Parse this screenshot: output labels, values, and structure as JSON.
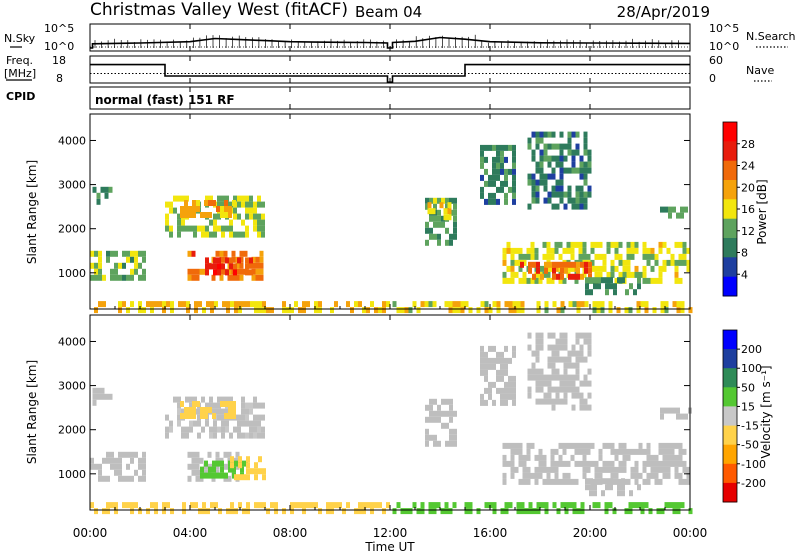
{
  "header": {
    "station": "Christmas Valley West (fitACF)",
    "beam": "Beam 04",
    "date": "28/Apr/2019"
  },
  "left_labels": {
    "nsky": "N.Sky",
    "freq_line1": "Freq.",
    "freq_line2": "[MHz]",
    "cpid": "CPID"
  },
  "right_labels": {
    "nsearch": "N.Search",
    "nave": "Nave"
  },
  "cpid_text": "normal (fast) 151 RF",
  "colors": {
    "power": [
      "#0000ff",
      "#1e3fa0",
      "#2e7b5c",
      "#5ea35e",
      "#f2e60e",
      "#f5a20b",
      "#f06a0a",
      "#e81c0c",
      "#ff0000"
    ],
    "velocity": [
      "#e60000",
      "#ff5a00",
      "#ffa500",
      "#ffd24a",
      "#c8c8c8",
      "#54c832",
      "#2e8b57",
      "#1e3f9f",
      "#0000ff"
    ],
    "ground": "#bebebe"
  },
  "chart_data": [
    {
      "type": "line",
      "id": "noise",
      "x": [
        0,
        24
      ],
      "xlim": [
        0,
        24
      ],
      "left_axis": {
        "ticks": [
          "10^5",
          "10^0"
        ]
      },
      "right_axis": {
        "ticks": [
          "10^5",
          "10^0"
        ]
      },
      "series": [
        {
          "x": [
            0.0,
            0.1,
            0.1,
            2.0,
            4.0,
            5.0,
            6.0,
            7.0,
            8.0,
            9.0,
            10.0,
            11.0,
            11.9,
            11.9,
            12.1,
            12.1,
            13.0,
            14.0,
            15.0,
            16.0,
            18.0,
            20.0,
            22.0,
            24.0
          ],
          "y": [
            0.0,
            0.0,
            0.2,
            0.24,
            0.3,
            0.45,
            0.4,
            0.35,
            0.3,
            0.28,
            0.27,
            0.26,
            0.24,
            0.0,
            0.0,
            0.26,
            0.32,
            0.5,
            0.42,
            0.3,
            0.25,
            0.24,
            0.23,
            0.22
          ]
        }
      ]
    },
    {
      "type": "line",
      "id": "frequency",
      "xlim": [
        0,
        24
      ],
      "left_axis": {
        "ticks": [
          "18",
          "8"
        ],
        "range": [
          8,
          18
        ]
      },
      "right_axis": {
        "ticks": [
          "60",
          "0"
        ],
        "range": [
          0,
          60
        ]
      },
      "series": [
        {
          "x": [
            0,
            3.0,
            3.0,
            11.9,
            11.9,
            12.1,
            12.1,
            15.0,
            15.0,
            24
          ],
          "y": [
            14.8,
            14.8,
            10.6,
            10.6,
            8.3,
            8.3,
            10.6,
            10.6,
            14.8,
            14.8
          ]
        },
        {
          "x": [
            0,
            24
          ],
          "y": [
            11.5,
            11.5
          ]
        }
      ]
    },
    {
      "type": "heatmap",
      "id": "power",
      "ylabel": "Slant Range [km]",
      "xlim": [
        0,
        24
      ],
      "ylim": [
        180,
        4600
      ],
      "yticks": [
        1000,
        2000,
        3000,
        4000
      ],
      "colorbar": {
        "label": "Power [dB]",
        "ticks": [
          4,
          8,
          12,
          16,
          20,
          24,
          28
        ],
        "range": [
          0,
          32
        ]
      },
      "patches": [
        {
          "t0": 0.0,
          "t1": 2.1,
          "r0": 950,
          "r1": 1500,
          "value": 13
        },
        {
          "t0": 0.1,
          "t1": 0.9,
          "r0": 2600,
          "r1": 2950,
          "value": 10
        },
        {
          "t0": 3.0,
          "t1": 6.9,
          "r0": 1900,
          "r1": 2750,
          "value": 14
        },
        {
          "t0": 3.6,
          "t1": 5.8,
          "r0": 2250,
          "r1": 2650,
          "value": 19
        },
        {
          "t0": 3.9,
          "t1": 6.9,
          "r0": 850,
          "r1": 1500,
          "value": 22
        },
        {
          "t0": 4.6,
          "t1": 6.5,
          "r0": 950,
          "r1": 1350,
          "value": 27
        },
        {
          "t0": 13.4,
          "t1": 14.6,
          "r0": 1700,
          "r1": 2700,
          "value": 12
        },
        {
          "t0": 13.5,
          "t1": 14.5,
          "r0": 2300,
          "r1": 2600,
          "value": 17
        },
        {
          "t0": 16.5,
          "t1": 24.0,
          "r0": 750,
          "r1": 1700,
          "value": 15
        },
        {
          "t0": 17.2,
          "t1": 20.0,
          "r0": 850,
          "r1": 1250,
          "value": 23
        },
        {
          "t0": 19.8,
          "t1": 22.0,
          "r0": 550,
          "r1": 900,
          "value": 10
        },
        {
          "t0": 17.5,
          "t1": 20.0,
          "r0": 2500,
          "r1": 4200,
          "value": 9
        },
        {
          "t0": 15.6,
          "t1": 17.0,
          "r0": 2600,
          "r1": 3900,
          "value": 9
        },
        {
          "t0": 22.8,
          "t1": 24.0,
          "r0": 2300,
          "r1": 2500,
          "value": 11
        },
        {
          "t0": 0.0,
          "t1": 11.9,
          "r0": 180,
          "r1": 360,
          "value": 18
        },
        {
          "t0": 12.1,
          "t1": 24.0,
          "r0": 180,
          "r1": 360,
          "value": 16
        }
      ]
    },
    {
      "type": "heatmap",
      "id": "velocity",
      "ylabel": "Slant Range [km]",
      "xlabel": "Time UT",
      "xlim": [
        0,
        24
      ],
      "ylim": [
        180,
        4600
      ],
      "yticks": [
        1000,
        2000,
        3000,
        4000
      ],
      "xticks": [
        "00:00",
        "04:00",
        "08:00",
        "12:00",
        "16:00",
        "20:00",
        "00:00"
      ],
      "colorbar": {
        "label": "Velocity [m s⁻¹]",
        "ticks": [
          "200",
          "100",
          "50",
          "15",
          "-15",
          "-50",
          "-100",
          "-200"
        ]
      },
      "patches": [
        {
          "t0": 0.0,
          "t1": 2.1,
          "r0": 950,
          "r1": 1500,
          "value": 0
        },
        {
          "t0": 0.1,
          "t1": 0.9,
          "r0": 2600,
          "r1": 2950,
          "value": 0
        },
        {
          "t0": 3.0,
          "t1": 6.9,
          "r0": 1900,
          "r1": 2750,
          "value": -8
        },
        {
          "t0": 3.6,
          "t1": 5.8,
          "r0": 2250,
          "r1": 2650,
          "value": -40
        },
        {
          "t0": 3.9,
          "t1": 5.9,
          "r0": 850,
          "r1": 1500,
          "value": 0
        },
        {
          "t0": 4.4,
          "t1": 6.3,
          "r0": 950,
          "r1": 1300,
          "value": 30
        },
        {
          "t0": 5.6,
          "t1": 6.9,
          "r0": 900,
          "r1": 1400,
          "value": -30
        },
        {
          "t0": 13.4,
          "t1": 14.6,
          "r0": 1700,
          "r1": 2700,
          "value": 0
        },
        {
          "t0": 16.5,
          "t1": 24.0,
          "r0": 750,
          "r1": 1700,
          "value": 0
        },
        {
          "t0": 19.8,
          "t1": 22.0,
          "r0": 550,
          "r1": 900,
          "value": 0
        },
        {
          "t0": 17.5,
          "t1": 20.0,
          "r0": 2500,
          "r1": 4200,
          "value": 0
        },
        {
          "t0": 15.6,
          "t1": 17.0,
          "r0": 2600,
          "r1": 3900,
          "value": 0
        },
        {
          "t0": 22.8,
          "t1": 24.0,
          "r0": 2300,
          "r1": 2500,
          "value": 0
        },
        {
          "t0": 0.0,
          "t1": 11.9,
          "r0": 180,
          "r1": 360,
          "value": -40
        },
        {
          "t0": 12.1,
          "t1": 24.0,
          "r0": 180,
          "r1": 360,
          "value": 25
        }
      ]
    }
  ]
}
